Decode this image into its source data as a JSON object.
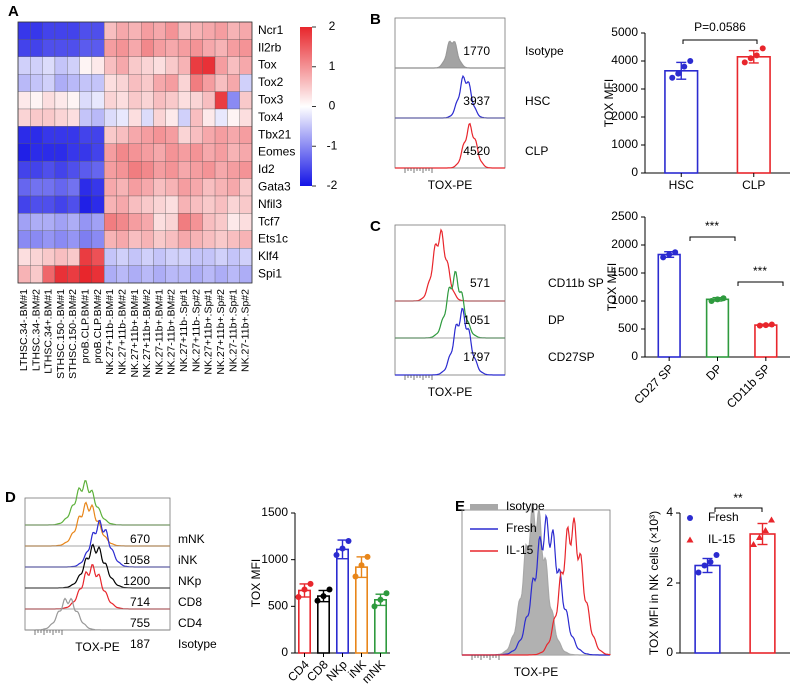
{
  "chart_data": [
    {
      "type": "heatmap",
      "panel": "A",
      "rows": [
        "Ncr1",
        "Il2rb",
        "Tox",
        "Tox2",
        "Tox3",
        "Tox4",
        "Tbx21",
        "Eomes",
        "Id2",
        "Gata3",
        "Nfil3",
        "Tcf7",
        "Ets1c",
        "Klf4",
        "Spi1"
      ],
      "columns": [
        "LTHSC.34-.BM#1",
        "LTHSC.34-.BM#2",
        "LTHSC.34+.BM#1",
        "STHSC.150-.BM#1",
        "STHSC.150-.BM#2",
        "proB.CLP.BM#1",
        "proB.CLP.BM#2",
        "NK.27+11b-.BM#1",
        "NK.27+11b-.BM#2",
        "NK.27+11b+.BM#1",
        "NK.27+11b+.BM#2",
        "NK.27-11b+.BM#1",
        "NK.27-11b+.BM#2",
        "NK.27+11b-.Sp#1",
        "NK.27+11b-.Sp#2",
        "NK.27+11b+.Sp#1",
        "NK.27+11b+.Sp#2",
        "NK.27-11b+.Sp#1",
        "NK.27-11b+.Sp#2"
      ],
      "values": [
        [
          -1.7,
          -1.7,
          -1.6,
          -1.6,
          -1.6,
          -1.5,
          -1.5,
          0.6,
          0.8,
          0.7,
          0.9,
          0.8,
          1.0,
          0.6,
          0.7,
          0.8,
          0.9,
          0.7,
          0.8
        ],
        [
          -1.6,
          -1.6,
          -1.5,
          -1.5,
          -1.5,
          -1.4,
          -1.4,
          0.9,
          1.0,
          0.8,
          1.1,
          0.9,
          0.8,
          0.9,
          1.0,
          0.8,
          0.7,
          0.9,
          1.0
        ],
        [
          -0.4,
          -0.4,
          -0.3,
          -0.5,
          -0.4,
          0.1,
          0.2,
          0.6,
          0.8,
          0.5,
          0.4,
          0.3,
          0.5,
          0.7,
          1.8,
          1.9,
          0.9,
          0.6,
          0.8
        ],
        [
          -0.6,
          -0.5,
          -0.4,
          -0.7,
          -0.6,
          -0.5,
          -0.5,
          0.3,
          0.4,
          0.6,
          0.5,
          0.8,
          0.9,
          0.4,
          1.2,
          0.9,
          0.6,
          0.8,
          -0.4
        ],
        [
          0.2,
          0.1,
          0.3,
          0.2,
          0.1,
          -0.3,
          -0.2,
          0.4,
          0.3,
          0.5,
          0.4,
          0.6,
          0.5,
          0.3,
          0.4,
          0.6,
          1.8,
          -1.0,
          0.5
        ],
        [
          0.4,
          0.5,
          0.5,
          0.4,
          0.3,
          -0.5,
          -0.6,
          -0.3,
          -0.2,
          0.3,
          -0.3,
          0.4,
          0.2,
          -0.4,
          0.6,
          0.2,
          -0.2,
          0.1,
          0.3
        ],
        [
          -1.8,
          -1.8,
          -1.7,
          -1.7,
          -1.7,
          -1.6,
          -1.6,
          0.5,
          0.6,
          0.8,
          0.9,
          1.0,
          0.9,
          0.4,
          0.6,
          0.8,
          0.9,
          0.8,
          0.9
        ],
        [
          -1.9,
          -1.8,
          -1.8,
          -1.8,
          -1.7,
          -1.7,
          -1.6,
          0.9,
          1.1,
          1.0,
          0.9,
          0.8,
          1.0,
          0.9,
          1.0,
          0.8,
          0.9,
          0.7,
          0.8
        ],
        [
          -1.6,
          -1.6,
          -1.5,
          -1.6,
          -1.5,
          -1.4,
          -1.3,
          0.9,
          1.0,
          1.2,
          1.1,
          0.9,
          1.0,
          0.8,
          0.9,
          1.0,
          0.8,
          0.9,
          1.0
        ],
        [
          -1.3,
          -1.2,
          -1.2,
          -1.3,
          -1.2,
          -1.8,
          -1.7,
          0.8,
          0.7,
          0.9,
          0.8,
          0.6,
          0.7,
          0.9,
          0.8,
          0.6,
          0.7,
          0.8,
          0.5
        ],
        [
          -1.6,
          -1.5,
          -1.5,
          -1.6,
          -1.5,
          -1.9,
          -1.8,
          0.7,
          0.8,
          0.6,
          0.5,
          0.4,
          0.3,
          0.7,
          0.6,
          0.5,
          0.6,
          0.4,
          0.5
        ],
        [
          -0.8,
          -0.7,
          -0.7,
          -0.8,
          -0.7,
          -0.9,
          -0.8,
          1.2,
          1.1,
          0.9,
          0.8,
          0.3,
          0.4,
          1.2,
          1.0,
          0.6,
          0.5,
          0.2,
          0.3
        ],
        [
          -1.0,
          -1.0,
          -0.9,
          -1.0,
          -0.9,
          -1.1,
          -1.0,
          0.7,
          0.8,
          0.6,
          0.7,
          0.5,
          0.6,
          0.8,
          0.7,
          0.6,
          0.5,
          0.6,
          0.7
        ],
        [
          0.3,
          0.4,
          0.5,
          0.6,
          0.5,
          1.8,
          1.6,
          -0.5,
          -0.4,
          -0.5,
          -0.4,
          -0.5,
          -0.4,
          -0.4,
          -0.5,
          -0.5,
          -0.4,
          -0.5,
          -0.4
        ],
        [
          0.7,
          0.5,
          1.4,
          1.9,
          1.8,
          2.0,
          1.9,
          -0.7,
          -0.6,
          -0.7,
          -0.6,
          -0.7,
          -0.6,
          -0.6,
          -0.7,
          -0.6,
          -0.7,
          -0.6,
          -0.7
        ]
      ],
      "clim": [
        -2,
        2
      ],
      "cticks": [
        2,
        1,
        0,
        -1,
        -2
      ],
      "colors": [
        "#1414e6",
        "#ffffff",
        "#e8262c"
      ]
    },
    {
      "type": "histogram_overlay",
      "panel": "B",
      "xlabel": "TOX-PE",
      "series": [
        {
          "name": "Isotype",
          "value": 1770,
          "color": "#999999",
          "filled": true
        },
        {
          "name": "HSC",
          "value": 3937,
          "color": "#2b2bd0"
        },
        {
          "name": "CLP",
          "value": 4520,
          "color": "#e8262c"
        }
      ]
    },
    {
      "type": "bar",
      "ylabel": "TOX MFI",
      "categories": [
        "HSC",
        "CLP"
      ],
      "colors": [
        "#2b2bd0",
        "#e8262c"
      ],
      "values": [
        3650,
        4150
      ],
      "errors": [
        300,
        220
      ],
      "points": [
        [
          3400,
          3550,
          3800,
          4000
        ],
        [
          3950,
          4100,
          4200,
          4450
        ]
      ],
      "ylim": [
        0,
        5000
      ],
      "yticks": [
        0,
        1000,
        2000,
        3000,
        4000,
        5000
      ],
      "annotations": [
        "P=0.0586"
      ]
    },
    {
      "type": "histogram_overlay",
      "panel": "C",
      "xlabel": "TOX-PE",
      "series": [
        {
          "name": "CD11b SP",
          "value": 571,
          "color": "#e8262c"
        },
        {
          "name": "DP",
          "value": 1051,
          "color": "#2e9a3e"
        },
        {
          "name": "CD27SP",
          "value": 1797,
          "color": "#2b2bd0"
        }
      ]
    },
    {
      "type": "bar",
      "ylabel": "TOX MFI",
      "categories": [
        "CD27 SP",
        "DP",
        "CD11b SP"
      ],
      "colors": [
        "#2b2bd0",
        "#2e9a3e",
        "#e8262c"
      ],
      "values": [
        1830,
        1030,
        570
      ],
      "errors": [
        50,
        30,
        15
      ],
      "points": [
        [
          1780,
          1830,
          1870
        ],
        [
          1000,
          1030,
          1050
        ],
        [
          560,
          570,
          580
        ]
      ],
      "ylim": [
        0,
        2500
      ],
      "yticks": [
        0,
        500,
        1000,
        1500,
        2000,
        2500
      ],
      "annotations": [
        "***",
        "***"
      ]
    },
    {
      "type": "histogram_overlay",
      "panel": "D",
      "xlabel": "TOX-PE",
      "series": [
        {
          "name": "mNK",
          "value": 670,
          "color": "#5db13b"
        },
        {
          "name": "iNK",
          "value": 1058,
          "color": "#e8861a"
        },
        {
          "name": "NKp",
          "value": 1200,
          "color": "#2b2bd0"
        },
        {
          "name": "CD8",
          "value": 714,
          "color": "#000000"
        },
        {
          "name": "CD4",
          "value": 755,
          "color": "#e8262c"
        },
        {
          "name": "Isotype",
          "value": 187,
          "color": "#999999"
        }
      ]
    },
    {
      "type": "bar",
      "ylabel": "TOX MFI",
      "categories": [
        "CD4",
        "CD8",
        "NKp",
        "iNK",
        "mNK"
      ],
      "colors": [
        "#e8262c",
        "#000000",
        "#2b2bd0",
        "#e8861a",
        "#2e9a3e"
      ],
      "values": [
        670,
        610,
        1110,
        920,
        570
      ],
      "errors": [
        70,
        60,
        100,
        110,
        60
      ],
      "points": [
        [
          600,
          680,
          740
        ],
        [
          560,
          610,
          680
        ],
        [
          1050,
          1120,
          1200
        ],
        [
          820,
          940,
          1030
        ],
        [
          500,
          570,
          640
        ]
      ],
      "ylim": [
        0,
        1500
      ],
      "yticks": [
        0,
        500,
        1000,
        1500
      ]
    },
    {
      "type": "histogram_overlay",
      "panel": "E",
      "xlabel": "TOX-PE",
      "legend": true,
      "series": [
        {
          "name": "Isotype",
          "color": "#a8a8a8",
          "filled": true
        },
        {
          "name": "Fresh",
          "color": "#2b2bd0"
        },
        {
          "name": "IL-15",
          "color": "#e8262c"
        }
      ]
    },
    {
      "type": "bar",
      "ylabel": "TOX MFI in NK cells (×10³)",
      "legend": true,
      "categories": [
        "Fresh",
        "IL-15"
      ],
      "colors": [
        "#2b2bd0",
        "#e8262c"
      ],
      "markers": [
        "circle",
        "triangle"
      ],
      "values": [
        2.5,
        3.4
      ],
      "errors": [
        0.2,
        0.3
      ],
      "points": [
        [
          2.3,
          2.5,
          2.6,
          2.8
        ],
        [
          3.1,
          3.3,
          3.5,
          3.8
        ]
      ],
      "ylim": [
        0,
        4
      ],
      "yticks": [
        0,
        2,
        4
      ],
      "annotations": [
        "**"
      ]
    }
  ]
}
